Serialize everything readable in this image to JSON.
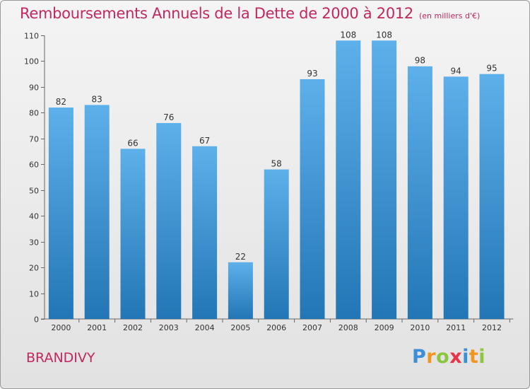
{
  "header": {
    "title": "Remboursements Annuels de la Dette de 2000 à 2012",
    "subtitle": "(en milliers d'€)"
  },
  "footer": {
    "commune": "BRANDIVY",
    "brand": "Proxiti",
    "brand_letters": [
      {
        "char": "P",
        "color": "#3a8fd6"
      },
      {
        "char": "r",
        "color": "#f0951f"
      },
      {
        "char": "o",
        "color": "#8cc63e"
      },
      {
        "char": "x",
        "color": "#e8344a"
      },
      {
        "char": "i",
        "color": "#3a8fd6"
      },
      {
        "char": "t",
        "color": "#f0951f"
      },
      {
        "char": "i",
        "color": "#8cc63e"
      }
    ]
  },
  "colors": {
    "title": "#c0285f",
    "bar_top": "#5db0ea",
    "bar_bottom": "#2376b5",
    "background_top": "#f4f4f4",
    "background_bottom": "#e2e2e2"
  },
  "chart_data": {
    "type": "bar",
    "categories": [
      "2000",
      "2001",
      "2002",
      "2003",
      "2004",
      "2005",
      "2006",
      "2007",
      "2008",
      "2009",
      "2010",
      "2011",
      "2012"
    ],
    "values": [
      82,
      83,
      66,
      76,
      67,
      22,
      58,
      93,
      108,
      108,
      98,
      94,
      95
    ],
    "ylim": [
      0,
      110
    ],
    "yticks": [
      0,
      10,
      20,
      30,
      40,
      50,
      60,
      70,
      80,
      90,
      100,
      110
    ],
    "grid": false,
    "data_labels": true
  }
}
